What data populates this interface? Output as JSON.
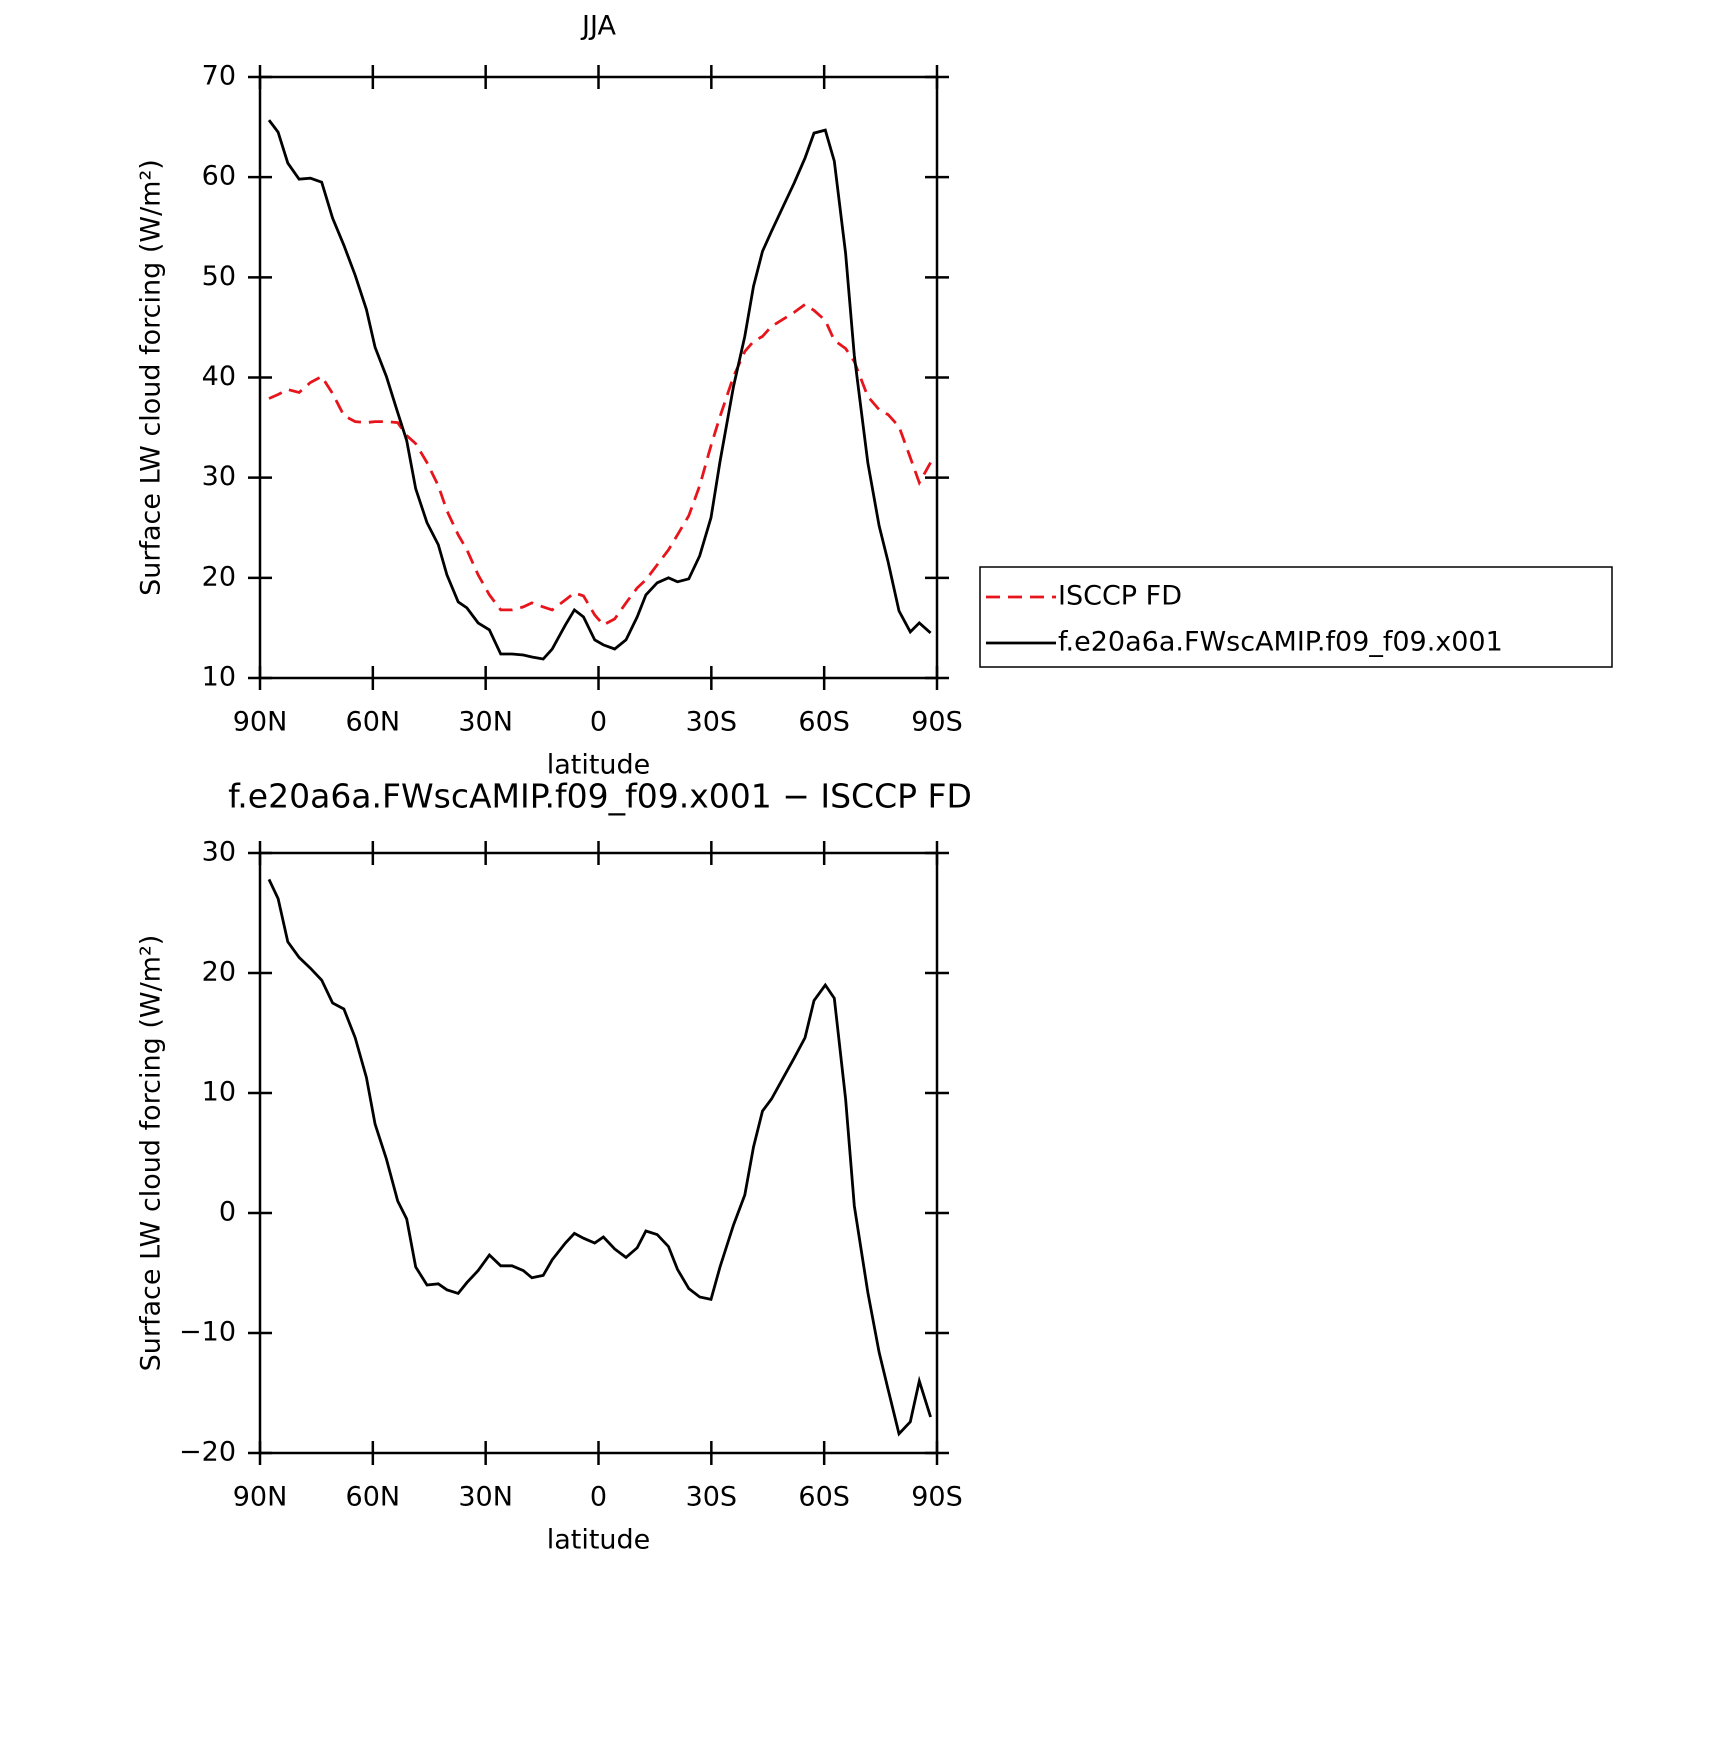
{
  "chart_data": [
    {
      "type": "line",
      "title": "JJA",
      "xlabel": "latitude",
      "ylabel": "Surface LW cloud forcing (W/m²)",
      "x": [
        87.6,
        85.2,
        82.6,
        79.6,
        76.6,
        73.6,
        70.7,
        67.7,
        64.7,
        61.7,
        59.4,
        56.4,
        53.4,
        51.0,
        48.6,
        45.6,
        42.6,
        40.3,
        37.3,
        35.0,
        32.0,
        29.0,
        26.0,
        23.0,
        20.0,
        17.7,
        14.7,
        12.3,
        8.8,
        6.4,
        4.0,
        1.0,
        -1.3,
        -4.3,
        -7.3,
        -10.3,
        -12.6,
        -15.6,
        -18.6,
        -21.0,
        -24.0,
        -26.9,
        -29.9,
        -32.3,
        -35.9,
        -38.9,
        -41.2,
        -43.6,
        -46.0,
        -49.0,
        -52.0,
        -54.9,
        -57.3,
        -60.3,
        -62.7,
        -65.7,
        -68.0,
        -71.6,
        -74.6,
        -77.0,
        -79.9,
        -82.9,
        -85.3,
        -88.3
      ],
      "xlim": [
        90,
        -90
      ],
      "xticks": [
        {
          "value": 90,
          "label": "90N"
        },
        {
          "value": 60,
          "label": "60N"
        },
        {
          "value": 30,
          "label": "30N"
        },
        0,
        {
          "value": -30,
          "label": "30S"
        },
        {
          "value": -60,
          "label": "60S"
        },
        {
          "value": -90,
          "label": "90S"
        }
      ],
      "ylim": [
        10,
        70
      ],
      "yticks": [
        10,
        20,
        30,
        40,
        50,
        60,
        70
      ],
      "legend": "outside-right",
      "series": [
        {
          "name": "ISCCP FD",
          "color": "#e8141b",
          "dash": true,
          "values": [
            37.9,
            38.3,
            38.8,
            38.5,
            39.5,
            40.1,
            38.4,
            36.2,
            35.6,
            35.5,
            35.6,
            35.6,
            35.5,
            34.2,
            33.4,
            31.5,
            29.2,
            26.7,
            24.3,
            22.8,
            20.3,
            18.3,
            16.8,
            16.8,
            17.1,
            17.5,
            17.1,
            16.8,
            17.8,
            18.5,
            18.2,
            16.3,
            15.3,
            15.9,
            17.5,
            19.0,
            19.8,
            21.3,
            22.8,
            24.3,
            26.2,
            29.2,
            33.2,
            36.1,
            40.1,
            42.6,
            43.6,
            44.1,
            45.1,
            45.8,
            46.5,
            47.3,
            46.7,
            45.7,
            43.7,
            42.9,
            41.6,
            38.1,
            36.8,
            36.3,
            35.1,
            32.0,
            29.5,
            31.5
          ]
        },
        {
          "name": "f.e20a6a.FWscAMIP.f09_f09.x001",
          "color": "#000000",
          "dash": false,
          "values": [
            65.7,
            64.5,
            61.4,
            59.8,
            59.9,
            59.5,
            55.9,
            53.2,
            50.2,
            46.8,
            43.0,
            40.1,
            36.5,
            33.7,
            28.9,
            25.5,
            23.3,
            20.3,
            17.6,
            17.0,
            15.5,
            14.8,
            12.4,
            12.4,
            12.3,
            12.1,
            11.9,
            12.9,
            15.3,
            16.8,
            16.1,
            13.8,
            13.3,
            12.9,
            13.8,
            16.1,
            18.3,
            19.5,
            20.0,
            19.6,
            19.9,
            22.2,
            26.0,
            31.6,
            39.1,
            44.1,
            49.1,
            52.6,
            54.6,
            57.0,
            59.4,
            61.9,
            64.4,
            64.7,
            61.6,
            52.4,
            42.2,
            31.5,
            25.2,
            21.6,
            16.7,
            14.6,
            15.5,
            14.5
          ]
        }
      ]
    },
    {
      "type": "line",
      "title": "f.e20a6a.FWscAMIP.f09_f09.x001 − ISCCP FD",
      "xlabel": "latitude",
      "ylabel": "Surface LW cloud forcing (W/m²)",
      "x": [
        87.6,
        85.2,
        82.6,
        79.6,
        76.6,
        73.6,
        70.7,
        67.7,
        64.7,
        61.7,
        59.4,
        56.4,
        53.4,
        51.0,
        48.6,
        45.6,
        42.6,
        40.3,
        37.3,
        35.0,
        32.0,
        29.0,
        26.0,
        23.0,
        20.0,
        17.7,
        14.7,
        12.3,
        8.8,
        6.4,
        4.0,
        1.0,
        -1.3,
        -4.3,
        -7.3,
        -10.3,
        -12.6,
        -15.6,
        -18.6,
        -21.0,
        -24.0,
        -26.9,
        -29.9,
        -32.3,
        -35.9,
        -38.9,
        -41.2,
        -43.6,
        -46.0,
        -49.0,
        -52.0,
        -54.9,
        -57.3,
        -60.3,
        -62.7,
        -65.7,
        -68.0,
        -71.6,
        -74.6,
        -77.0,
        -79.9,
        -82.9,
        -85.3,
        -88.3
      ],
      "xlim": [
        90,
        -90
      ],
      "xticks": [
        {
          "value": 90,
          "label": "90N"
        },
        {
          "value": 60,
          "label": "60N"
        },
        {
          "value": 30,
          "label": "30N"
        },
        0,
        {
          "value": -30,
          "label": "30S"
        },
        {
          "value": -60,
          "label": "60S"
        },
        {
          "value": -90,
          "label": "90S"
        }
      ],
      "ylim": [
        -20,
        30
      ],
      "yticks": [
        {
          "value": -20,
          "label": "−20"
        },
        {
          "value": -10,
          "label": "−10"
        },
        0,
        10,
        20,
        30
      ],
      "color": "#000000",
      "values": [
        27.8,
        26.2,
        22.6,
        21.3,
        20.4,
        19.4,
        17.5,
        17.0,
        14.6,
        11.3,
        7.4,
        4.5,
        1.0,
        -0.5,
        -4.5,
        -6.0,
        -5.9,
        -6.4,
        -6.7,
        -5.8,
        -4.8,
        -3.5,
        -4.4,
        -4.4,
        -4.8,
        -5.4,
        -5.2,
        -3.9,
        -2.5,
        -1.7,
        -2.1,
        -2.5,
        -2.0,
        -3.0,
        -3.7,
        -2.9,
        -1.5,
        -1.8,
        -2.8,
        -4.7,
        -6.3,
        -7.0,
        -7.2,
        -4.5,
        -1.0,
        1.5,
        5.5,
        8.5,
        9.5,
        11.2,
        12.9,
        14.6,
        17.7,
        19.0,
        17.9,
        9.5,
        0.6,
        -6.6,
        -11.6,
        -14.7,
        -18.4,
        -17.4,
        -14.0,
        -17.0
      ]
    }
  ]
}
